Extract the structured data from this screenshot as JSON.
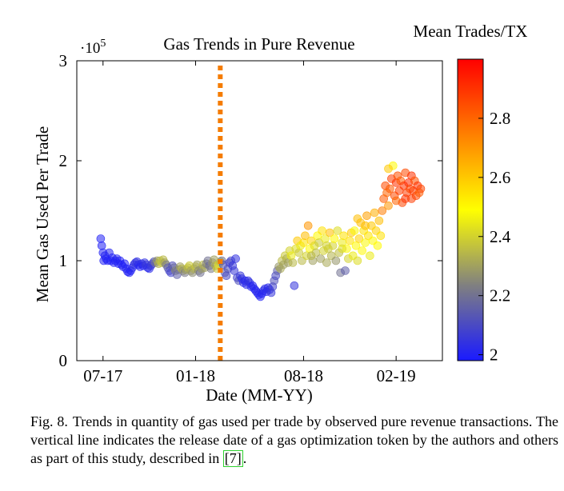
{
  "chart_data": {
    "type": "scatter",
    "title": "Gas Trends in Pure Revenue",
    "xlabel": "Date (MM-YY)",
    "ylabel": "Mean Gas Used Per Trade",
    "y_multiplier_label": "·10",
    "y_multiplier_exp": "5",
    "ylim": [
      0,
      3
    ],
    "yticks": [
      "0",
      "1",
      "2",
      "3"
    ],
    "xticks": [
      {
        "label": "07-17",
        "month": 0
      },
      {
        "label": "01-18",
        "month": 6
      },
      {
        "label": "08-18",
        "month": 13
      },
      {
        "label": "02-19",
        "month": 19
      }
    ],
    "xlim": [
      -1.7,
      22.0
    ],
    "vertical_line": {
      "month": 7.6,
      "color": "#f57c00",
      "style": "dotted"
    },
    "colorbar": {
      "label": "Mean Trades/TX",
      "range": [
        1.98,
        3.0
      ],
      "ticks": [
        "2",
        "2.2",
        "2.4",
        "2.6",
        "2.8"
      ],
      "colors": [
        "#1a1aff",
        "#808080",
        "#ffff00",
        "#ff8000",
        "#ff0000"
      ]
    },
    "grid": false,
    "points_note": "x in months since 07-17, y in units of 10^5 gas, c = mean trades/tx",
    "points": [
      [
        -0.15,
        1.22,
        2.0
      ],
      [
        -0.08,
        1.15,
        2.0
      ],
      [
        0.0,
        1.08,
        2.0
      ],
      [
        0.05,
        1.0,
        2.0
      ],
      [
        0.12,
        1.05,
        2.01
      ],
      [
        0.2,
        1.02,
        2.0
      ],
      [
        0.3,
        1.0,
        2.0
      ],
      [
        0.4,
        1.08,
        2.01
      ],
      [
        0.5,
        1.0,
        2.0
      ],
      [
        0.6,
        1.03,
        2.0
      ],
      [
        0.7,
        0.98,
        2.0
      ],
      [
        0.8,
        1.0,
        2.0
      ],
      [
        0.9,
        1.02,
        2.01
      ],
      [
        1.0,
        0.97,
        2.0
      ],
      [
        1.1,
        1.0,
        2.0
      ],
      [
        1.2,
        0.96,
        2.0
      ],
      [
        1.3,
        0.94,
        2.01
      ],
      [
        1.4,
        0.97,
        2.0
      ],
      [
        1.5,
        0.92,
        2.0
      ],
      [
        1.6,
        0.89,
        2.01
      ],
      [
        1.7,
        0.88,
        2.0
      ],
      [
        1.8,
        0.9,
        2.0
      ],
      [
        1.9,
        0.93,
        2.02
      ],
      [
        2.0,
        0.96,
        2.03
      ],
      [
        2.1,
        0.98,
        2.05
      ],
      [
        2.2,
        0.99,
        2.04
      ],
      [
        2.3,
        0.96,
        2.02
      ],
      [
        2.4,
        0.94,
        2.0
      ],
      [
        2.5,
        0.97,
        2.03
      ],
      [
        2.6,
        0.95,
        2.01
      ],
      [
        2.7,
        0.98,
        2.04
      ],
      [
        2.8,
        0.96,
        2.06
      ],
      [
        2.9,
        0.93,
        2.03
      ],
      [
        3.0,
        0.92,
        2.02
      ],
      [
        3.1,
        0.95,
        2.05
      ],
      [
        3.2,
        0.97,
        2.08
      ],
      [
        3.3,
        0.99,
        2.12
      ],
      [
        3.4,
        0.98,
        2.2
      ],
      [
        3.5,
        1.0,
        2.28
      ],
      [
        3.6,
        0.97,
        2.33
      ],
      [
        3.7,
        1.0,
        2.36
      ],
      [
        3.8,
        0.98,
        2.38
      ],
      [
        3.9,
        1.01,
        2.35
      ],
      [
        4.0,
        0.98,
        2.3
      ],
      [
        4.1,
        0.96,
        2.22
      ],
      [
        4.2,
        0.93,
        2.15
      ],
      [
        4.3,
        0.9,
        2.1
      ],
      [
        4.4,
        0.88,
        2.08
      ],
      [
        4.5,
        0.95,
        2.12
      ],
      [
        4.6,
        0.93,
        2.18
      ],
      [
        4.7,
        0.9,
        2.25
      ],
      [
        4.8,
        0.86,
        2.15
      ],
      [
        4.9,
        0.91,
        2.2
      ],
      [
        5.0,
        0.94,
        2.3
      ],
      [
        5.1,
        0.92,
        2.34
      ],
      [
        5.2,
        0.9,
        2.28
      ],
      [
        5.3,
        0.88,
        2.22
      ],
      [
        5.4,
        0.91,
        2.3
      ],
      [
        5.5,
        0.93,
        2.36
      ],
      [
        5.6,
        0.95,
        2.38
      ],
      [
        5.7,
        0.9,
        2.3
      ],
      [
        5.8,
        0.88,
        2.26
      ],
      [
        5.9,
        0.92,
        2.33
      ],
      [
        6.0,
        0.94,
        2.38
      ],
      [
        6.1,
        0.96,
        2.3
      ],
      [
        6.2,
        0.9,
        2.25
      ],
      [
        6.3,
        0.88,
        2.2
      ],
      [
        6.4,
        0.92,
        2.28
      ],
      [
        6.5,
        0.96,
        2.35
      ],
      [
        6.6,
        0.93,
        2.3
      ],
      [
        6.7,
        0.97,
        2.24
      ],
      [
        6.8,
        1.0,
        2.2
      ],
      [
        6.9,
        0.95,
        2.18
      ],
      [
        7.0,
        0.92,
        2.22
      ],
      [
        7.1,
        0.98,
        2.28
      ],
      [
        7.2,
        1.01,
        2.3
      ],
      [
        7.3,
        0.95,
        2.33
      ],
      [
        7.4,
        0.92,
        2.38
      ],
      [
        7.5,
        0.96,
        2.42
      ],
      [
        7.6,
        0.99,
        2.35
      ],
      [
        7.7,
        1.0,
        2.2
      ],
      [
        7.8,
        0.96,
        2.1
      ],
      [
        7.9,
        0.88,
        2.15
      ],
      [
        8.0,
        0.85,
        2.1
      ],
      [
        8.1,
        0.92,
        2.12
      ],
      [
        8.2,
        0.98,
        2.08
      ],
      [
        8.3,
        1.0,
        2.1
      ],
      [
        8.4,
        0.95,
        2.05
      ],
      [
        8.5,
        0.9,
        2.06
      ],
      [
        8.6,
        1.02,
        2.04
      ],
      [
        8.7,
        0.83,
        2.08
      ],
      [
        8.8,
        0.8,
        2.12
      ],
      [
        8.9,
        0.85,
        2.06
      ],
      [
        9.0,
        0.82,
        2.04
      ],
      [
        9.1,
        0.78,
        2.03
      ],
      [
        9.2,
        0.8,
        2.02
      ],
      [
        9.3,
        0.76,
        2.02
      ],
      [
        9.4,
        0.8,
        2.03
      ],
      [
        9.5,
        0.78,
        2.05
      ],
      [
        9.6,
        0.74,
        2.02
      ],
      [
        9.7,
        0.75,
        2.01
      ],
      [
        9.8,
        0.72,
        2.02
      ],
      [
        9.9,
        0.7,
        2.0
      ],
      [
        10.0,
        0.68,
        2.02
      ],
      [
        10.1,
        0.66,
        2.01
      ],
      [
        10.2,
        0.64,
        2.0
      ],
      [
        10.3,
        0.67,
        2.01
      ],
      [
        10.4,
        0.7,
        2.02
      ],
      [
        10.5,
        0.72,
        2.03
      ],
      [
        10.6,
        0.69,
        2.01
      ],
      [
        10.7,
        0.73,
        2.02
      ],
      [
        10.8,
        0.71,
        2.04
      ],
      [
        10.9,
        0.68,
        2.05
      ],
      [
        11.0,
        0.74,
        2.08
      ],
      [
        11.1,
        0.8,
        2.12
      ],
      [
        11.2,
        0.85,
        2.1
      ],
      [
        11.3,
        0.9,
        2.15
      ],
      [
        11.4,
        0.94,
        2.28
      ],
      [
        11.5,
        0.92,
        2.32
      ],
      [
        11.6,
        1.0,
        2.35
      ],
      [
        11.7,
        0.96,
        2.3
      ],
      [
        11.8,
        1.05,
        2.38
      ],
      [
        11.9,
        1.02,
        2.33
      ],
      [
        12.0,
        0.98,
        2.3
      ],
      [
        12.1,
        1.1,
        2.4
      ],
      [
        12.2,
        1.05,
        2.45
      ],
      [
        12.3,
        0.98,
        2.35
      ],
      [
        12.4,
        0.75,
        2.05
      ],
      [
        12.5,
        1.12,
        2.42
      ],
      [
        12.6,
        1.2,
        2.6
      ],
      [
        12.7,
        1.08,
        2.38
      ],
      [
        12.8,
        1.15,
        2.45
      ],
      [
        12.9,
        1.0,
        2.35
      ],
      [
        13.0,
        1.18,
        2.55
      ],
      [
        13.1,
        1.25,
        2.62
      ],
      [
        13.2,
        1.05,
        2.4
      ],
      [
        13.3,
        1.35,
        2.7
      ],
      [
        13.4,
        1.12,
        2.5
      ],
      [
        13.5,
        1.2,
        2.58
      ],
      [
        13.6,
        1.0,
        2.3
      ],
      [
        13.7,
        1.15,
        2.42
      ],
      [
        13.8,
        1.08,
        2.35
      ],
      [
        13.9,
        1.25,
        2.5
      ],
      [
        14.0,
        1.18,
        2.38
      ],
      [
        14.1,
        1.02,
        2.3
      ],
      [
        14.2,
        1.3,
        2.55
      ],
      [
        14.3,
        1.1,
        2.4
      ],
      [
        14.4,
        1.22,
        2.45
      ],
      [
        14.5,
        0.98,
        2.32
      ],
      [
        14.6,
        1.12,
        2.38
      ],
      [
        14.7,
        1.28,
        2.62
      ],
      [
        14.8,
        1.05,
        2.34
      ],
      [
        14.9,
        1.15,
        2.4
      ],
      [
        15.0,
        1.22,
        2.5
      ],
      [
        15.1,
        1.0,
        2.28
      ],
      [
        15.2,
        1.3,
        2.42
      ],
      [
        15.3,
        1.08,
        2.36
      ],
      [
        15.4,
        0.88,
        2.2
      ],
      [
        15.5,
        1.18,
        2.45
      ],
      [
        15.6,
        1.25,
        2.55
      ],
      [
        15.7,
        0.9,
        2.15
      ],
      [
        15.8,
        1.12,
        2.5
      ],
      [
        15.9,
        1.02,
        2.4
      ],
      [
        16.0,
        1.2,
        2.55
      ],
      [
        16.1,
        1.28,
        2.6
      ],
      [
        16.2,
        1.05,
        2.45
      ],
      [
        16.3,
        1.3,
        2.48
      ],
      [
        16.4,
        1.15,
        2.5
      ],
      [
        16.5,
        1.0,
        2.42
      ],
      [
        16.6,
        1.22,
        2.58
      ],
      [
        16.7,
        1.38,
        2.62
      ],
      [
        16.8,
        1.1,
        2.5
      ],
      [
        16.9,
        1.3,
        2.55
      ],
      [
        17.0,
        1.18,
        2.48
      ],
      [
        17.1,
        1.45,
        2.68
      ],
      [
        17.2,
        1.25,
        2.55
      ],
      [
        17.3,
        1.05,
        2.45
      ],
      [
        17.4,
        1.35,
        2.6
      ],
      [
        17.5,
        1.2,
        2.5
      ],
      [
        17.6,
        1.48,
        2.65
      ],
      [
        17.7,
        1.3,
        2.58
      ],
      [
        17.8,
        1.15,
        2.5
      ],
      [
        17.9,
        1.4,
        2.62
      ],
      [
        18.0,
        1.25,
        2.55
      ],
      [
        18.1,
        1.5,
        2.75
      ],
      [
        18.2,
        1.62,
        2.82
      ],
      [
        18.3,
        1.75,
        2.85
      ],
      [
        18.4,
        1.68,
        2.8
      ],
      [
        18.5,
        1.55,
        2.7
      ],
      [
        18.6,
        1.72,
        2.82
      ],
      [
        18.7,
        1.82,
        2.88
      ],
      [
        18.8,
        1.95,
        2.5
      ],
      [
        18.9,
        1.65,
        2.85
      ],
      [
        19.0,
        1.78,
        2.9
      ],
      [
        19.1,
        1.85,
        2.84
      ],
      [
        19.2,
        1.7,
        2.88
      ],
      [
        19.3,
        1.8,
        2.82
      ],
      [
        19.4,
        1.58,
        2.86
      ],
      [
        19.5,
        1.75,
        2.9
      ],
      [
        19.6,
        1.88,
        2.85
      ],
      [
        19.7,
        1.68,
        2.88
      ],
      [
        19.8,
        1.78,
        2.92
      ],
      [
        19.9,
        1.72,
        2.86
      ],
      [
        20.0,
        1.85,
        2.9
      ],
      [
        20.1,
        1.7,
        2.88
      ],
      [
        20.2,
        1.8,
        2.84
      ],
      [
        20.3,
        1.65,
        2.86
      ],
      [
        20.4,
        1.75,
        2.9
      ],
      [
        20.5,
        1.68,
        2.82
      ],
      [
        20.6,
        1.72,
        2.86
      ],
      [
        18.5,
        1.92,
        2.6
      ],
      [
        19.0,
        1.6,
        2.8
      ],
      [
        19.6,
        1.62,
        2.9
      ],
      [
        20.0,
        1.62,
        2.88
      ],
      [
        17.0,
        1.35,
        2.62
      ],
      [
        16.5,
        1.42,
        2.62
      ],
      [
        15.5,
        1.12,
        2.42
      ],
      [
        14.5,
        1.15,
        2.4
      ],
      [
        13.5,
        1.05,
        2.35
      ]
    ]
  },
  "caption": {
    "label": "Fig. 8.",
    "text": "Trends in quantity of gas used per trade by observed pure revenue transactions. The vertical line indicates the release date of a gas optimization token by the authors and others as part of this study, described in",
    "ref": "[7]",
    "end": "."
  }
}
